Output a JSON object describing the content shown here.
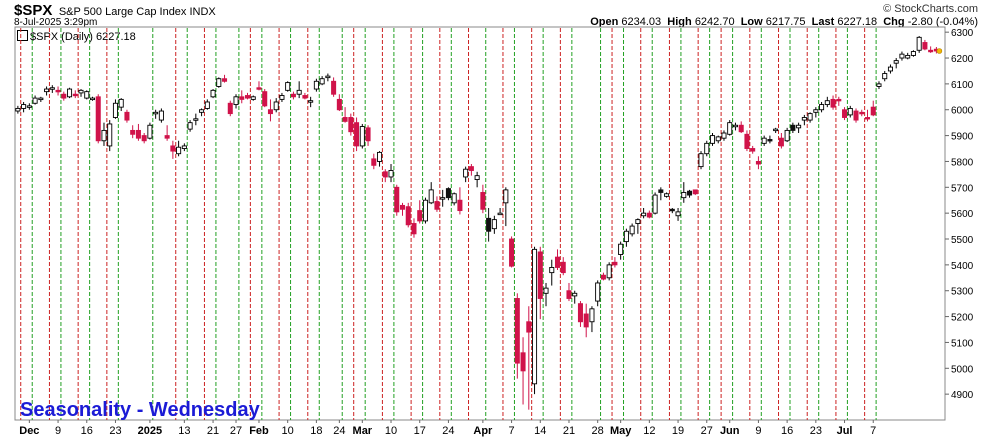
{
  "header": {
    "symbol": "$SPX",
    "name": "S&P 500 Large Cap Index INDX",
    "datetime": "8-Jul-2025 3:29pm",
    "brand": "© StockCharts.com",
    "open_label": "Open",
    "open": "6234.03",
    "high_label": "High",
    "high": "6242.70",
    "low_label": "Low",
    "low": "6217.75",
    "last_label": "Last",
    "last": "6227.18",
    "chg_label": "Chg",
    "chg": "-2.80 (-0.04%)",
    "legend": "$SPX (Daily) 6227.18"
  },
  "caption": "Seasonality - Wednesday",
  "colors": {
    "up": "#ffffff",
    "down": "#d0134a",
    "black": "#111111",
    "green_line": "#22a022",
    "red_line": "#cc2222",
    "caption": "#1b1bd6"
  },
  "chart_data": {
    "type": "candlestick",
    "title": "$SPX (Daily) 6227.18",
    "ylim": [
      4800,
      6320
    ],
    "yticks": [
      4900,
      5000,
      5100,
      5200,
      5300,
      5400,
      5500,
      5600,
      5700,
      5800,
      5900,
      6000,
      6100,
      6200,
      6300
    ],
    "xtick_labels": [
      "Dec",
      "9",
      "16",
      "23",
      "2025",
      "13",
      "21",
      "27",
      "Feb",
      "10",
      "18",
      "24",
      "Mar",
      "10",
      "17",
      "24",
      "Apr",
      "7",
      "14",
      "21",
      "28",
      "May",
      "12",
      "19",
      "27",
      "Jun",
      "9",
      "16",
      "23",
      "Jul",
      "7"
    ],
    "xtick_positions": [
      2,
      7,
      12,
      17,
      23,
      29,
      34,
      38,
      42,
      47,
      52,
      56,
      60,
      65,
      70,
      75,
      81,
      86,
      91,
      96,
      101,
      105,
      110,
      115,
      120,
      124,
      129,
      134,
      139,
      144,
      149
    ],
    "red_dashed_lines": [
      1,
      6,
      11,
      16,
      28,
      33,
      41,
      46,
      51,
      59,
      64,
      69,
      74,
      79,
      85,
      90,
      95,
      104,
      109,
      114,
      119,
      123,
      128,
      133,
      138,
      143,
      148
    ],
    "green_dashed_lines": [
      3,
      8,
      13,
      18,
      24,
      30,
      35,
      39,
      43,
      48,
      53,
      57,
      61,
      66,
      71,
      76,
      82,
      87,
      92,
      97,
      102,
      106,
      111,
      116,
      121,
      125,
      130,
      135,
      140,
      145,
      150
    ],
    "candles": [
      [
        0,
        5995,
        6015,
        5985,
        6005
      ],
      [
        1,
        6005,
        6030,
        5990,
        6020
      ],
      [
        2,
        6010,
        6025,
        6000,
        6015
      ],
      [
        3,
        6025,
        6055,
        6020,
        6045
      ],
      [
        4,
        6040,
        6050,
        6030,
        6045
      ],
      [
        5,
        6070,
        6090,
        6055,
        6080
      ],
      [
        6,
        6080,
        6095,
        6065,
        6085
      ],
      [
        7,
        6075,
        6090,
        6055,
        6070
      ],
      [
        8,
        6060,
        6070,
        6035,
        6045
      ],
      [
        9,
        6050,
        6085,
        6045,
        6080
      ],
      [
        10,
        6060,
        6075,
        6045,
        6055
      ],
      [
        11,
        6065,
        6080,
        6050,
        6075
      ],
      [
        12,
        6045,
        6075,
        6040,
        6070
      ],
      [
        13,
        6040,
        6050,
        6035,
        6045
      ],
      [
        14,
        6050,
        6060,
        5870,
        5880
      ],
      [
        15,
        5880,
        5950,
        5860,
        5920
      ],
      [
        16,
        5860,
        5960,
        5840,
        5945
      ],
      [
        17,
        5970,
        6040,
        5965,
        6025
      ],
      [
        18,
        6010,
        6045,
        5995,
        6040
      ],
      [
        19,
        5990,
        6000,
        5950,
        5960
      ],
      [
        20,
        5920,
        5940,
        5890,
        5905
      ],
      [
        21,
        5920,
        5945,
        5880,
        5890
      ],
      [
        22,
        5900,
        5910,
        5870,
        5880
      ],
      [
        23,
        5890,
        5950,
        5885,
        5940
      ],
      [
        24,
        5985,
        6000,
        5965,
        5990
      ],
      [
        25,
        5960,
        6005,
        5950,
        5995
      ],
      [
        26,
        5900,
        5940,
        5880,
        5890
      ],
      [
        27,
        5860,
        5880,
        5810,
        5840
      ],
      [
        28,
        5830,
        5880,
        5820,
        5855
      ],
      [
        29,
        5850,
        5870,
        5840,
        5860
      ],
      [
        30,
        5925,
        5960,
        5915,
        5950
      ],
      [
        31,
        5960,
        5985,
        5940,
        5965
      ],
      [
        32,
        5990,
        6005,
        5975,
        6000
      ],
      [
        33,
        6005,
        6040,
        6000,
        6030
      ],
      [
        34,
        6050,
        6080,
        6045,
        6075
      ],
      [
        35,
        6090,
        6125,
        6085,
        6120
      ],
      [
        36,
        6120,
        6135,
        6105,
        6110
      ],
      [
        37,
        6025,
        6035,
        5975,
        5985
      ],
      [
        38,
        6020,
        6060,
        6005,
        6050
      ],
      [
        39,
        6050,
        6075,
        6025,
        6040
      ],
      [
        40,
        6055,
        6065,
        6040,
        6045
      ],
      [
        41,
        6040,
        6055,
        6035,
        6050
      ],
      [
        42,
        6085,
        6110,
        6075,
        6080
      ],
      [
        43,
        6070,
        6080,
        6010,
        6015
      ],
      [
        44,
        6000,
        6040,
        5955,
        5985
      ],
      [
        45,
        6000,
        6045,
        5990,
        6030
      ],
      [
        46,
        6040,
        6065,
        6030,
        6055
      ],
      [
        47,
        6075,
        6110,
        6070,
        6105
      ],
      [
        48,
        6060,
        6070,
        6040,
        6050
      ],
      [
        49,
        6060,
        6110,
        6045,
        6075
      ],
      [
        50,
        6055,
        6065,
        6040,
        6045
      ],
      [
        51,
        6030,
        6050,
        6010,
        6035
      ],
      [
        52,
        6080,
        6120,
        6070,
        6110
      ],
      [
        53,
        6100,
        6130,
        6095,
        6120
      ],
      [
        54,
        6130,
        6140,
        6110,
        6130
      ],
      [
        55,
        6110,
        6125,
        6050,
        6060
      ],
      [
        56,
        6040,
        6060,
        5995,
        6000
      ],
      [
        57,
        5970,
        6010,
        5950,
        5955
      ],
      [
        58,
        5970,
        5985,
        5900,
        5915
      ],
      [
        59,
        5950,
        5970,
        5840,
        5860
      ],
      [
        60,
        5860,
        5945,
        5850,
        5935
      ],
      [
        61,
        5930,
        5940,
        5860,
        5880
      ],
      [
        62,
        5810,
        5830,
        5770,
        5785
      ],
      [
        63,
        5800,
        5840,
        5780,
        5835
      ],
      [
        64,
        5760,
        5770,
        5720,
        5740
      ],
      [
        65,
        5740,
        5790,
        5720,
        5765
      ],
      [
        66,
        5700,
        5710,
        5590,
        5605
      ],
      [
        67,
        5630,
        5640,
        5590,
        5615
      ],
      [
        68,
        5625,
        5640,
        5545,
        5555
      ],
      [
        69,
        5560,
        5580,
        5505,
        5520
      ],
      [
        70,
        5610,
        5650,
        5560,
        5570
      ],
      [
        71,
        5570,
        5660,
        5560,
        5650
      ],
      [
        72,
        5640,
        5720,
        5635,
        5690
      ],
      [
        73,
        5645,
        5665,
        5605,
        5615
      ],
      [
        74,
        5655,
        5690,
        5625,
        5660
      ],
      [
        75,
        5695,
        5700,
        5650,
        5660
      ],
      [
        76,
        5640,
        5680,
        5630,
        5675
      ],
      [
        77,
        5650,
        5700,
        5595,
        5610
      ],
      [
        78,
        5740,
        5780,
        5720,
        5770
      ],
      [
        79,
        5780,
        5790,
        5745,
        5765
      ],
      [
        80,
        5730,
        5760,
        5700,
        5745
      ],
      [
        81,
        5680,
        5710,
        5600,
        5615
      ],
      [
        82,
        5580,
        5620,
        5490,
        5530
      ],
      [
        83,
        5540,
        5590,
        5520,
        5575
      ],
      [
        84,
        5600,
        5620,
        5595,
        5600
      ],
      [
        85,
        5640,
        5700,
        5550,
        5690
      ],
      [
        86,
        5500,
        5510,
        5390,
        5395
      ],
      [
        87,
        5270,
        5290,
        4960,
        5020
      ],
      [
        88,
        5060,
        5120,
        4860,
        4990
      ],
      [
        89,
        5180,
        5240,
        4840,
        5140
      ],
      [
        90,
        4940,
        5470,
        4900,
        5460
      ],
      [
        91,
        5450,
        5470,
        5190,
        5270
      ],
      [
        92,
        5290,
        5330,
        5240,
        5310
      ],
      [
        93,
        5370,
        5420,
        5320,
        5390
      ],
      [
        94,
        5430,
        5460,
        5380,
        5390
      ],
      [
        95,
        5410,
        5430,
        5360,
        5370
      ],
      [
        96,
        5300,
        5330,
        5260,
        5270
      ],
      [
        97,
        5280,
        5300,
        5250,
        5290
      ],
      [
        98,
        5250,
        5260,
        5160,
        5180
      ],
      [
        99,
        5210,
        5250,
        5120,
        5160
      ],
      [
        100,
        5180,
        5240,
        5140,
        5230
      ],
      [
        101,
        5260,
        5340,
        5240,
        5330
      ],
      [
        102,
        5360,
        5370,
        5340,
        5345
      ],
      [
        103,
        5350,
        5410,
        5340,
        5400
      ],
      [
        104,
        5410,
        5430,
        5390,
        5400
      ],
      [
        105,
        5440,
        5490,
        5420,
        5480
      ],
      [
        106,
        5490,
        5540,
        5470,
        5530
      ],
      [
        107,
        5520,
        5560,
        5510,
        5550
      ],
      [
        108,
        5560,
        5580,
        5520,
        5575
      ],
      [
        109,
        5590,
        5620,
        5580,
        5600
      ],
      [
        110,
        5600,
        5610,
        5580,
        5585
      ],
      [
        111,
        5600,
        5680,
        5595,
        5670
      ],
      [
        112,
        5680,
        5700,
        5650,
        5690
      ],
      [
        113,
        5665,
        5680,
        5660,
        5675
      ],
      [
        114,
        5610,
        5620,
        5600,
        5615
      ],
      [
        115,
        5590,
        5620,
        5570,
        5605
      ],
      [
        116,
        5660,
        5720,
        5640,
        5680
      ],
      [
        117,
        5670,
        5690,
        5660,
        5685
      ],
      [
        118,
        5690,
        5690,
        5670,
        5675
      ],
      [
        119,
        5780,
        5840,
        5770,
        5830
      ],
      [
        120,
        5830,
        5880,
        5820,
        5870
      ],
      [
        121,
        5870,
        5910,
        5860,
        5900
      ],
      [
        122,
        5880,
        5900,
        5870,
        5895
      ],
      [
        123,
        5890,
        5920,
        5880,
        5910
      ],
      [
        124,
        5905,
        5960,
        5900,
        5950
      ],
      [
        125,
        5935,
        5950,
        5920,
        5940
      ],
      [
        126,
        5940,
        5955,
        5910,
        5915
      ],
      [
        127,
        5905,
        5920,
        5840,
        5850
      ],
      [
        128,
        5850,
        5860,
        5830,
        5840
      ],
      [
        129,
        5800,
        5820,
        5770,
        5790
      ],
      [
        130,
        5870,
        5900,
        5860,
        5890
      ],
      [
        131,
        5880,
        5900,
        5870,
        5885
      ],
      [
        132,
        5920,
        5930,
        5910,
        5925
      ],
      [
        133,
        5890,
        5910,
        5850,
        5860
      ],
      [
        134,
        5880,
        5930,
        5875,
        5920
      ],
      [
        135,
        5920,
        5950,
        5910,
        5940
      ],
      [
        136,
        5930,
        5950,
        5910,
        5940
      ],
      [
        137,
        5960,
        5980,
        5940,
        5970
      ],
      [
        138,
        5960,
        5990,
        5950,
        5985
      ],
      [
        139,
        5990,
        6010,
        5970,
        6000
      ],
      [
        140,
        6000,
        6030,
        5990,
        6020
      ],
      [
        141,
        6020,
        6050,
        6010,
        6035
      ],
      [
        142,
        6040,
        6055,
        6000,
        6010
      ],
      [
        143,
        6040,
        6050,
        6015,
        6035
      ],
      [
        144,
        6000,
        6010,
        5960,
        5970
      ],
      [
        145,
        5980,
        6015,
        5970,
        6005
      ],
      [
        146,
        5995,
        6005,
        5950,
        5960
      ],
      [
        147,
        5990,
        6000,
        5975,
        5985
      ],
      [
        148,
        5970,
        6000,
        5955,
        5965
      ],
      [
        149,
        6010,
        6035,
        5975,
        5980
      ],
      [
        150,
        6090,
        6110,
        6080,
        6100
      ],
      [
        151,
        6120,
        6150,
        6110,
        6140
      ],
      [
        152,
        6150,
        6175,
        6140,
        6165
      ],
      [
        153,
        6180,
        6200,
        6160,
        6190
      ],
      [
        154,
        6200,
        6225,
        6190,
        6215
      ],
      [
        155,
        6200,
        6220,
        6195,
        6210
      ],
      [
        156,
        6210,
        6230,
        6205,
        6225
      ],
      [
        157,
        6230,
        6285,
        6220,
        6280
      ],
      [
        158,
        6260,
        6270,
        6230,
        6235
      ],
      [
        159,
        6230,
        6245,
        6220,
        6225
      ],
      [
        160,
        6234.03,
        6242.7,
        6217.75,
        6227.18
      ]
    ],
    "black_candles": [
      75,
      82,
      112,
      114,
      117,
      131,
      135
    ],
    "xlabel": "",
    "ylabel": ""
  }
}
